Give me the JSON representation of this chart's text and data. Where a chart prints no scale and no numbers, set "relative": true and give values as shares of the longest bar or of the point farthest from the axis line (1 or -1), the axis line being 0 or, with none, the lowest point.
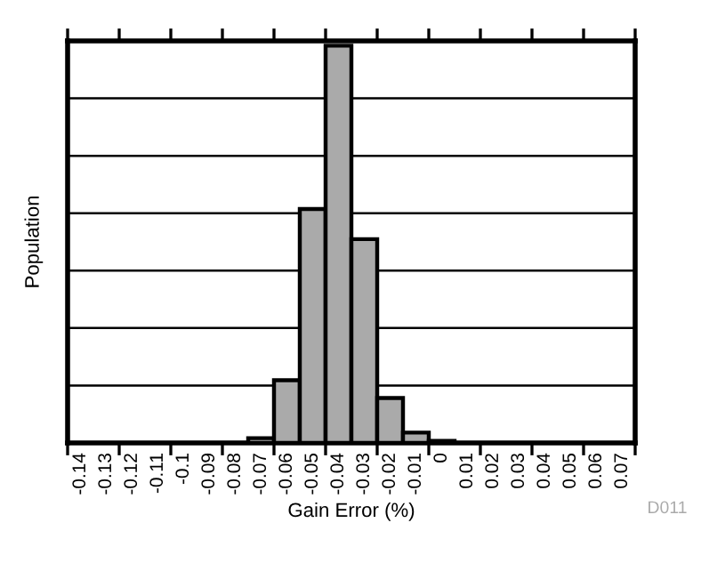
{
  "chart_data": {
    "type": "bar",
    "relative": true,
    "xlabel": "Gain Error (%)",
    "ylabel": "Population",
    "categories": [
      "-0.14",
      "-0.13",
      "-0.12",
      "-0.11",
      "-0.1",
      "-0.09",
      "-0.08",
      "-0.07",
      "-0.06",
      "-0.05",
      "-0.04",
      "-0.03",
      "-0.02",
      "-0.01",
      "0",
      "0.01",
      "0.02",
      "0.03",
      "0.04",
      "0.05",
      "0.06",
      "0.07"
    ],
    "values": [
      0,
      0,
      0,
      0,
      0,
      0,
      0,
      0.012,
      0.158,
      0.589,
      1,
      0.513,
      0.113,
      0.026,
      0.005,
      0,
      0,
      0,
      0,
      0,
      0,
      0
    ],
    "color": "#aaaaaa",
    "grid": "y",
    "annotations": [
      "D011"
    ]
  }
}
